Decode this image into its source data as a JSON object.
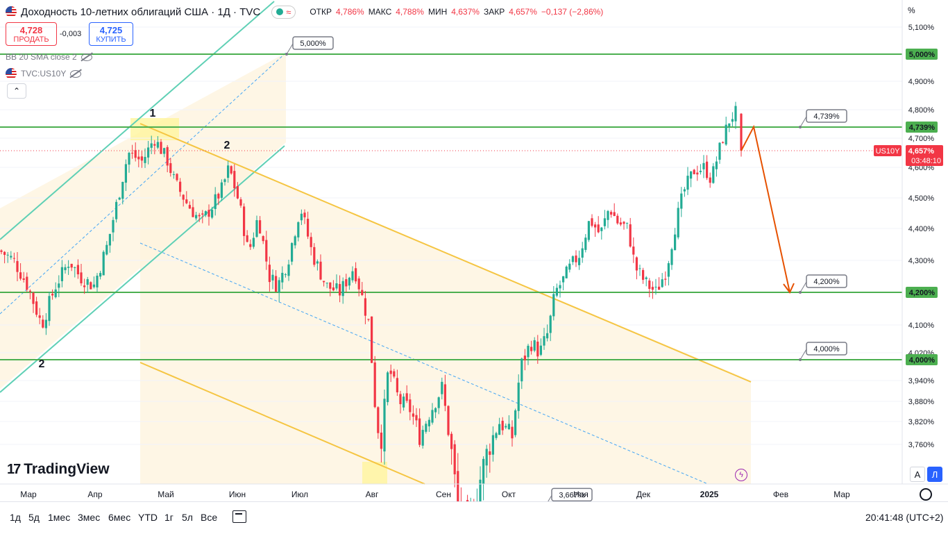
{
  "header": {
    "title": "Доходность 10-летних облигаций США · 1Д · TVC",
    "ohlc": [
      {
        "k": "ОТКР",
        "v": "4,786%"
      },
      {
        "k": "МАКС",
        "v": "4,788%"
      },
      {
        "k": "МИН",
        "v": "4,637%"
      },
      {
        "k": "ЗАКР",
        "v": "4,657%"
      },
      {
        "k": "",
        "v": "−0,137 (−2,86%)"
      }
    ]
  },
  "trade": {
    "sell_price": "4,728",
    "sell_label": "ПРОДАТЬ",
    "spread": "-0,003",
    "buy_price": "4,725",
    "buy_label": "КУПИТЬ"
  },
  "indicators": {
    "bb": "BB 20 SMA close 2",
    "symbol": "TVC:US10Y"
  },
  "logo": {
    "text": "TradingView",
    "mark": "17"
  },
  "axis_unit": "%",
  "icons": {
    "flag": "us-flag-icon",
    "eye": "eye-hidden-icon",
    "collapse": "chevron-up-icon",
    "calendar": "calendar-range-icon",
    "settings": "gear-icon",
    "flash": "lightning-icon"
  },
  "colors": {
    "up": "#22ab94",
    "down": "#f23645",
    "hline": "#4caf50",
    "orange_channel": "#f5c542",
    "teal_channel": "#5fd0b5",
    "forecast": "#e65100",
    "blue_line": "#2962ff"
  },
  "bottom": {
    "timeframes": [
      "1д",
      "5д",
      "1мес",
      "3мес",
      "6мес",
      "YTD",
      "1г",
      "5л",
      "Все"
    ],
    "clock": "20:41:48 (UTC+2)",
    "scale_auto": "A",
    "scale_log": "Л"
  },
  "chart_data": {
    "type": "candlestick",
    "symbol": "US10Y",
    "ylim": [
      3.7,
      5.14
    ],
    "y_ticks": [
      3.76,
      3.82,
      3.88,
      3.94,
      4.02,
      4.1,
      4.2,
      4.3,
      4.4,
      4.5,
      4.6,
      4.7,
      4.8,
      4.9,
      5.0,
      5.1
    ],
    "y_tick_labels": [
      "3,760%",
      "3,820%",
      "3,880%",
      "3,940%",
      "4,020%",
      "4,100%",
      "4,200%",
      "4,300%",
      "4,400%",
      "4,500%",
      "4,600%",
      "4,700%",
      "4,800%",
      "4,900%",
      "5,000%",
      "5,100%"
    ],
    "x_labels": [
      "Мар",
      "Апр",
      "Май",
      "Июн",
      "Июл",
      "Авг",
      "Сен",
      "Окт",
      "Ноя",
      "Дек",
      "2025",
      "Фев",
      "Мар"
    ],
    "horizontal_levels": [
      {
        "value": 5.0,
        "label": "5,000%"
      },
      {
        "value": 4.739,
        "label": "4,739%"
      },
      {
        "value": 4.2,
        "label": "4,200%"
      },
      {
        "value": 4.0,
        "label": "4,000%"
      },
      {
        "value": 3.667,
        "label": "3,667%"
      }
    ],
    "last_price": {
      "symbol": "US10Y",
      "value": 4.657,
      "label": "4,657%",
      "countdown": "03:48:10"
    },
    "wave_labels": [
      "1",
      "2",
      "2"
    ],
    "close_path": [
      [
        0,
        4.33
      ],
      [
        20,
        4.3
      ],
      [
        40,
        4.22
      ],
      [
        60,
        4.1
      ],
      [
        80,
        4.22
      ],
      [
        100,
        4.3
      ],
      [
        115,
        4.25
      ],
      [
        135,
        4.22
      ],
      [
        155,
        4.35
      ],
      [
        170,
        4.5
      ],
      [
        185,
        4.65
      ],
      [
        205,
        4.62
      ],
      [
        222,
        4.7
      ],
      [
        240,
        4.63
      ],
      [
        252,
        4.55
      ],
      [
        270,
        4.48
      ],
      [
        290,
        4.42
      ],
      [
        305,
        4.47
      ],
      [
        320,
        4.53
      ],
      [
        330,
        4.6
      ],
      [
        345,
        4.48
      ],
      [
        358,
        4.32
      ],
      [
        372,
        4.44
      ],
      [
        388,
        4.25
      ],
      [
        400,
        4.22
      ],
      [
        415,
        4.3
      ],
      [
        433,
        4.47
      ],
      [
        450,
        4.32
      ],
      [
        470,
        4.22
      ],
      [
        490,
        4.2
      ],
      [
        510,
        4.28
      ],
      [
        520,
        4.2
      ],
      [
        532,
        4.1
      ],
      [
        540,
        3.88
      ],
      [
        548,
        3.75
      ],
      [
        560,
        3.98
      ],
      [
        575,
        3.88
      ],
      [
        590,
        3.86
      ],
      [
        605,
        3.78
      ],
      [
        620,
        3.85
      ],
      [
        637,
        3.92
      ],
      [
        648,
        3.77
      ],
      [
        660,
        3.66
      ],
      [
        675,
        3.63
      ],
      [
        690,
        3.7
      ],
      [
        705,
        3.76
      ],
      [
        720,
        3.82
      ],
      [
        738,
        3.78
      ],
      [
        750,
        3.98
      ],
      [
        765,
        4.05
      ],
      [
        778,
        4.02
      ],
      [
        790,
        4.08
      ],
      [
        800,
        4.2
      ],
      [
        812,
        4.24
      ],
      [
        822,
        4.28
      ],
      [
        835,
        4.32
      ],
      [
        850,
        4.43
      ],
      [
        865,
        4.38
      ],
      [
        878,
        4.47
      ],
      [
        890,
        4.42
      ],
      [
        905,
        4.4
      ],
      [
        915,
        4.28
      ],
      [
        930,
        4.23
      ],
      [
        945,
        4.2
      ],
      [
        960,
        4.27
      ],
      [
        972,
        4.4
      ],
      [
        985,
        4.52
      ],
      [
        1000,
        4.59
      ],
      [
        1015,
        4.6
      ],
      [
        1025,
        4.56
      ],
      [
        1040,
        4.69
      ],
      [
        1052,
        4.77
      ],
      [
        1060,
        4.79
      ],
      [
        1066,
        4.786
      ]
    ],
    "last_candle": {
      "open": 4.786,
      "high": 4.788,
      "low": 4.637,
      "close": 4.657
    },
    "forecast_path": [
      [
        1068,
        4.657
      ],
      [
        1086,
        4.74
      ],
      [
        1138,
        4.2
      ]
    ]
  }
}
